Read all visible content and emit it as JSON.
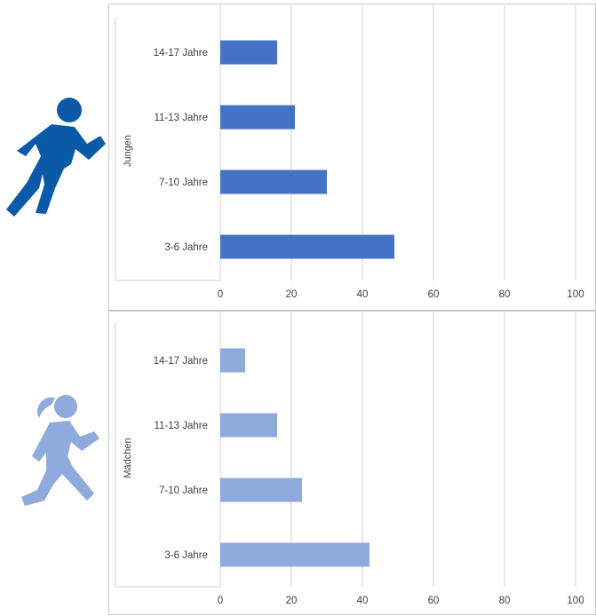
{
  "colors": {
    "boys": "#4472c4",
    "girls": "#8faadc",
    "grid": "#d9d9d9",
    "frame": "#c8c8c8",
    "boys_icon": "#0b5aa8",
    "girls_icon": "#8faadc"
  },
  "icons": {
    "top": "running-boy-icon",
    "bottom": "running-girl-icon"
  },
  "chart_data": [
    {
      "type": "bar",
      "orientation": "horizontal",
      "group_label": "Jungen",
      "categories": [
        "14-17 Jahre",
        "11-13 Jahre",
        "7-10 Jahre",
        "3-6 Jahre"
      ],
      "values": [
        16,
        21,
        30,
        49
      ],
      "xlim": [
        0,
        100
      ],
      "xticks": [
        "0",
        "20",
        "40",
        "60",
        "80",
        "100"
      ],
      "grid": true
    },
    {
      "type": "bar",
      "orientation": "horizontal",
      "group_label": "Mädchen",
      "categories": [
        "14-17 Jahre",
        "11-13 Jahre",
        "7-10 Jahre",
        "3-6 Jahre"
      ],
      "values": [
        7,
        16,
        23,
        42
      ],
      "xlim": [
        0,
        100
      ],
      "xticks": [
        "0",
        "20",
        "40",
        "60",
        "80",
        "100"
      ],
      "grid": true
    }
  ]
}
